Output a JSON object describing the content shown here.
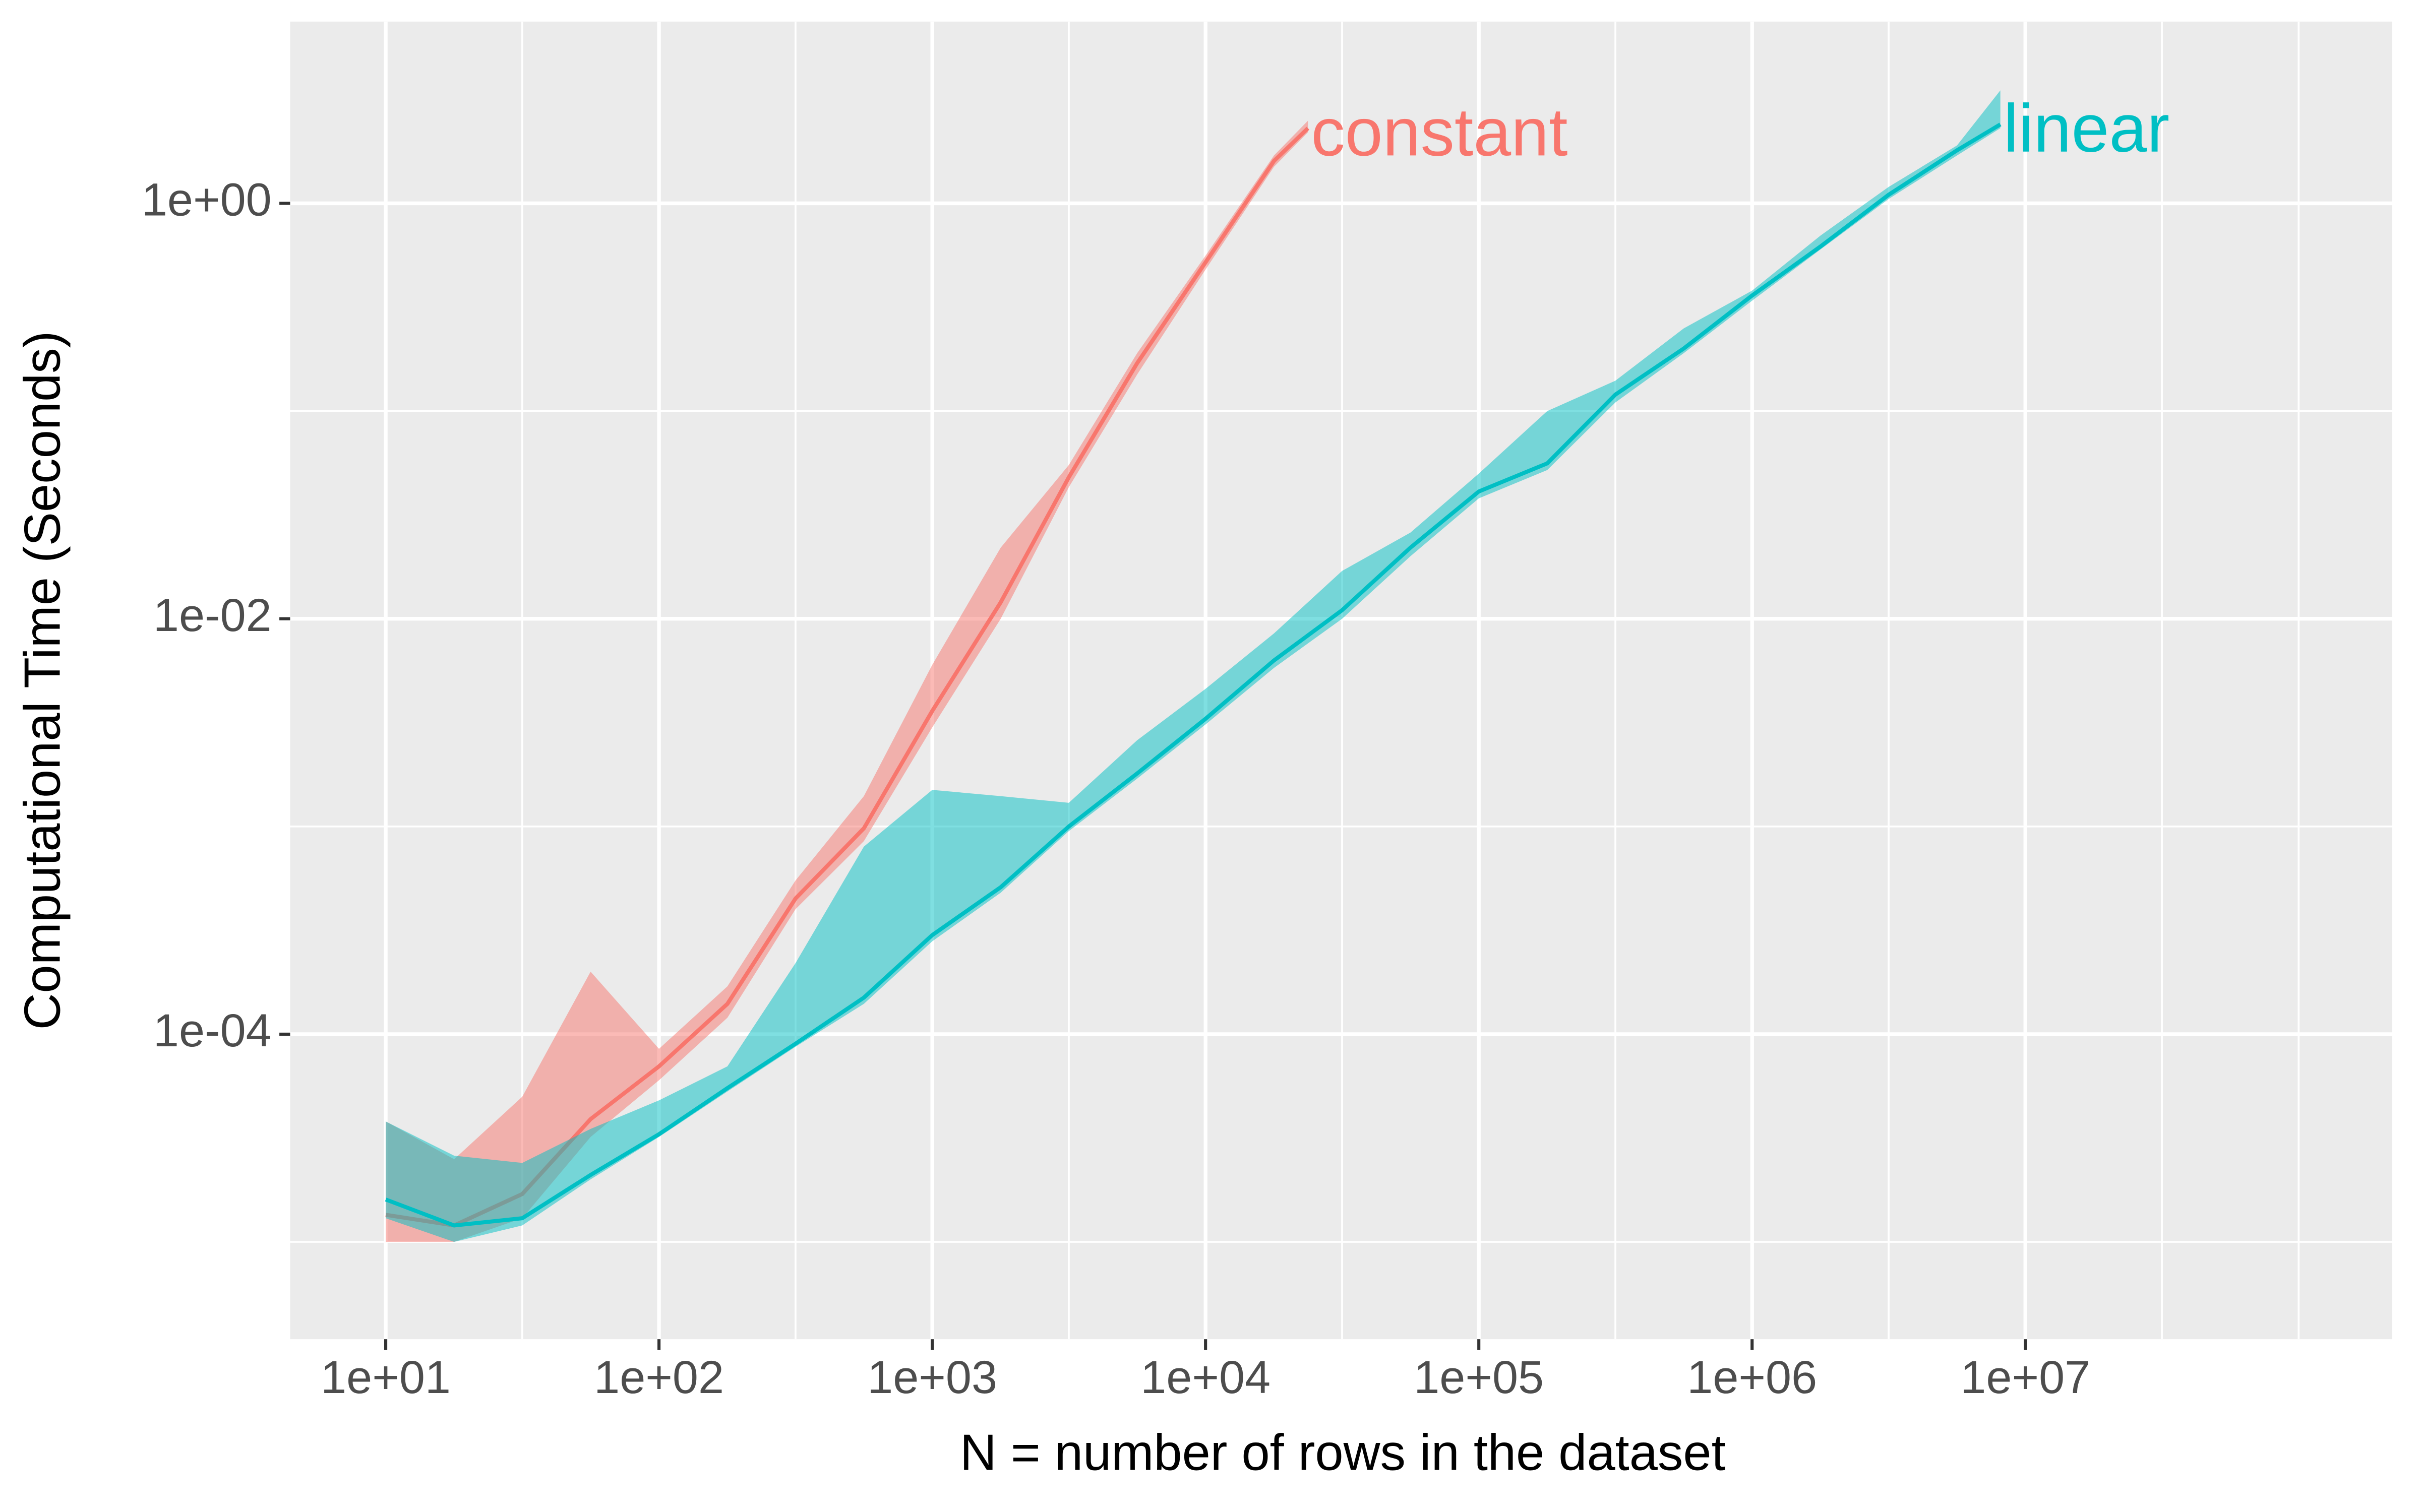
{
  "chart_data": {
    "type": "line",
    "x_label": "N = number of rows in the dataset",
    "y_label": "Computational Time (Seconds)",
    "log_x": true,
    "log_y": true,
    "grid": true,
    "xlim": [
      4.47,
      220000000
    ],
    "ylim": [
      3.4e-06,
      7.5
    ],
    "xticks": [
      {
        "value": 10,
        "label": "1e+01"
      },
      {
        "value": 100,
        "label": "1e+02"
      },
      {
        "value": 1000,
        "label": "1e+03"
      },
      {
        "value": 10000,
        "label": "1e+04"
      },
      {
        "value": 100000,
        "label": "1e+05"
      },
      {
        "value": 1000000,
        "label": "1e+06"
      },
      {
        "value": 10000000,
        "label": "1e+07"
      }
    ],
    "x_minor_grid": [
      31.6,
      316,
      3160,
      31600,
      316000,
      3160000,
      31600000,
      100000000
    ],
    "yticks": [
      {
        "value": 0.0001,
        "label": "1e-04"
      },
      {
        "value": 0.01,
        "label": "1e-02"
      },
      {
        "value": 1,
        "label": "1e+00"
      }
    ],
    "y_minor_grid": [
      1e-05,
      0.001,
      0.1
    ],
    "series": [
      {
        "name": "constant",
        "color": "#F8766D",
        "x": [
          10,
          17.8,
          31.6,
          56.2,
          100,
          178,
          316,
          562,
          1000,
          1780,
          3160,
          5620,
          10000,
          17800,
          23700
        ],
        "values": [
          1.35e-05,
          1.2e-05,
          1.7e-05,
          3.9e-05,
          7e-05,
          0.00014,
          0.00045,
          0.00098,
          0.0036,
          0.012,
          0.048,
          0.17,
          0.52,
          1.6,
          2.3
        ],
        "lower": [
          1e-05,
          1e-05,
          1.3e-05,
          3.2e-05,
          6e-05,
          0.00012,
          0.0004,
          0.00085,
          0.003,
          0.01,
          0.043,
          0.15,
          0.48,
          1.5,
          2.2
        ],
        "upper": [
          3.8e-05,
          2.5e-05,
          5e-05,
          0.0002,
          8.5e-05,
          0.00017,
          0.00055,
          0.0014,
          0.006,
          0.022,
          0.055,
          0.19,
          0.56,
          1.7,
          2.5
        ]
      },
      {
        "name": "linear",
        "color": "#00BFC4",
        "x": [
          10,
          17.8,
          31.6,
          56.2,
          100,
          178,
          316,
          562,
          1000,
          1780,
          3160,
          5620,
          10000,
          17800,
          31600,
          56200,
          100000,
          178000,
          316000,
          562000,
          1000000,
          1780000,
          3160000,
          5620000,
          8100000
        ],
        "values": [
          1.6e-05,
          1.2e-05,
          1.3e-05,
          2.1e-05,
          3.3e-05,
          5.5e-05,
          9e-05,
          0.00015,
          0.0003,
          0.00051,
          0.001,
          0.0018,
          0.0033,
          0.0063,
          0.011,
          0.022,
          0.041,
          0.056,
          0.12,
          0.2,
          0.36,
          0.62,
          1.1,
          1.8,
          2.4
        ],
        "lower": [
          1.3e-05,
          1e-05,
          1.2e-05,
          2e-05,
          3.2e-05,
          5.3e-05,
          8.7e-05,
          0.00014,
          0.00028,
          0.00048,
          0.00095,
          0.0017,
          0.0031,
          0.0058,
          0.01,
          0.02,
          0.038,
          0.052,
          0.11,
          0.19,
          0.34,
          0.6,
          1.05,
          1.7,
          2.3
        ],
        "upper": [
          3.8e-05,
          2.6e-05,
          2.4e-05,
          3.5e-05,
          4.8e-05,
          7e-05,
          0.00022,
          0.0008,
          0.0015,
          0.0014,
          0.0013,
          0.0026,
          0.0046,
          0.0085,
          0.017,
          0.026,
          0.05,
          0.1,
          0.14,
          0.25,
          0.38,
          0.7,
          1.2,
          1.9,
          3.5
        ]
      }
    ]
  }
}
